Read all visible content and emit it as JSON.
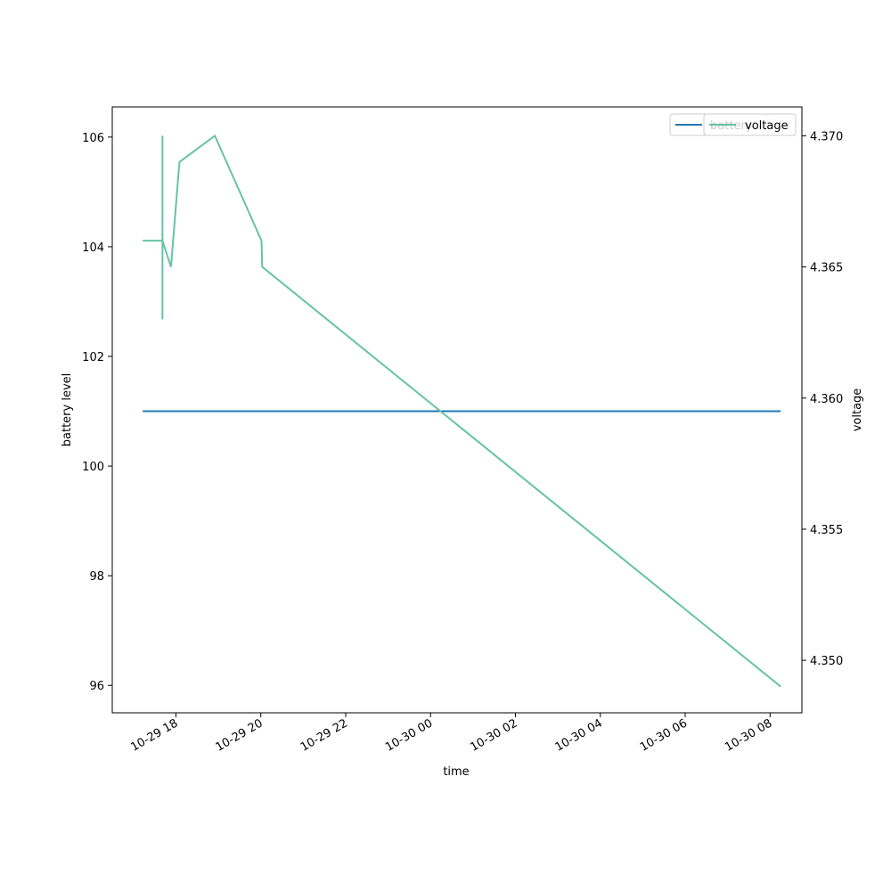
{
  "chart_data": {
    "type": "line",
    "xlabel": "time",
    "ylabel_left": "battery level",
    "ylabel_right": "voltage",
    "x_ticks": [
      "10-29 18",
      "10-29 20",
      "10-29 22",
      "10-30 00",
      "10-30 02",
      "10-30 04",
      "10-30 06",
      "10-30 08"
    ],
    "x_tick_values": [
      "2023-10-29T18:00",
      "2023-10-29T20:00",
      "2023-10-29T22:00",
      "2023-10-30T00:00",
      "2023-10-30T02:00",
      "2023-10-30T04:00",
      "2023-10-30T06:00",
      "2023-10-30T08:00"
    ],
    "xlim": [
      "2023-10-29T16:30",
      "2023-10-30T08:45"
    ],
    "y_left_ticks": [
      96,
      98,
      100,
      102,
      104,
      106
    ],
    "y_left_lim": [
      95.5,
      106.55
    ],
    "y_right_ticks": [
      "4.350",
      "4.355",
      "4.360",
      "4.365",
      "4.370"
    ],
    "y_right_lim": [
      4.348,
      4.3711
    ],
    "grid": false,
    "legend_placement": "top-right",
    "series": [
      {
        "name": "battery",
        "axis": "left",
        "color": "#1f77b4",
        "points": [
          {
            "x": "2023-10-29T17:13",
            "y": 101
          },
          {
            "x": "2023-10-30T08:15",
            "y": 101
          }
        ]
      },
      {
        "name": "voltage",
        "axis": "right",
        "color": "#66c2a5",
        "points": [
          {
            "x": "2023-10-29T17:13",
            "y": 4.366
          },
          {
            "x": "2023-10-29T17:41",
            "y": 4.366
          },
          {
            "x": "2023-10-29T17:41",
            "y": 4.37
          },
          {
            "x": "2023-10-29T17:41",
            "y": 4.363
          },
          {
            "x": "2023-10-29T17:41",
            "y": 4.366
          },
          {
            "x": "2023-10-29T17:53",
            "y": 4.365
          },
          {
            "x": "2023-10-29T18:05",
            "y": 4.369
          },
          {
            "x": "2023-10-29T18:55",
            "y": 4.37
          },
          {
            "x": "2023-10-29T20:01",
            "y": 4.366
          },
          {
            "x": "2023-10-29T20:02",
            "y": 4.365
          },
          {
            "x": "2023-10-30T08:15",
            "y": 4.349
          }
        ]
      }
    ]
  },
  "legend": {
    "items": [
      {
        "label": "battery",
        "color": "#1f77b4"
      },
      {
        "label": "voltage",
        "color": "#66c2a5"
      }
    ]
  }
}
